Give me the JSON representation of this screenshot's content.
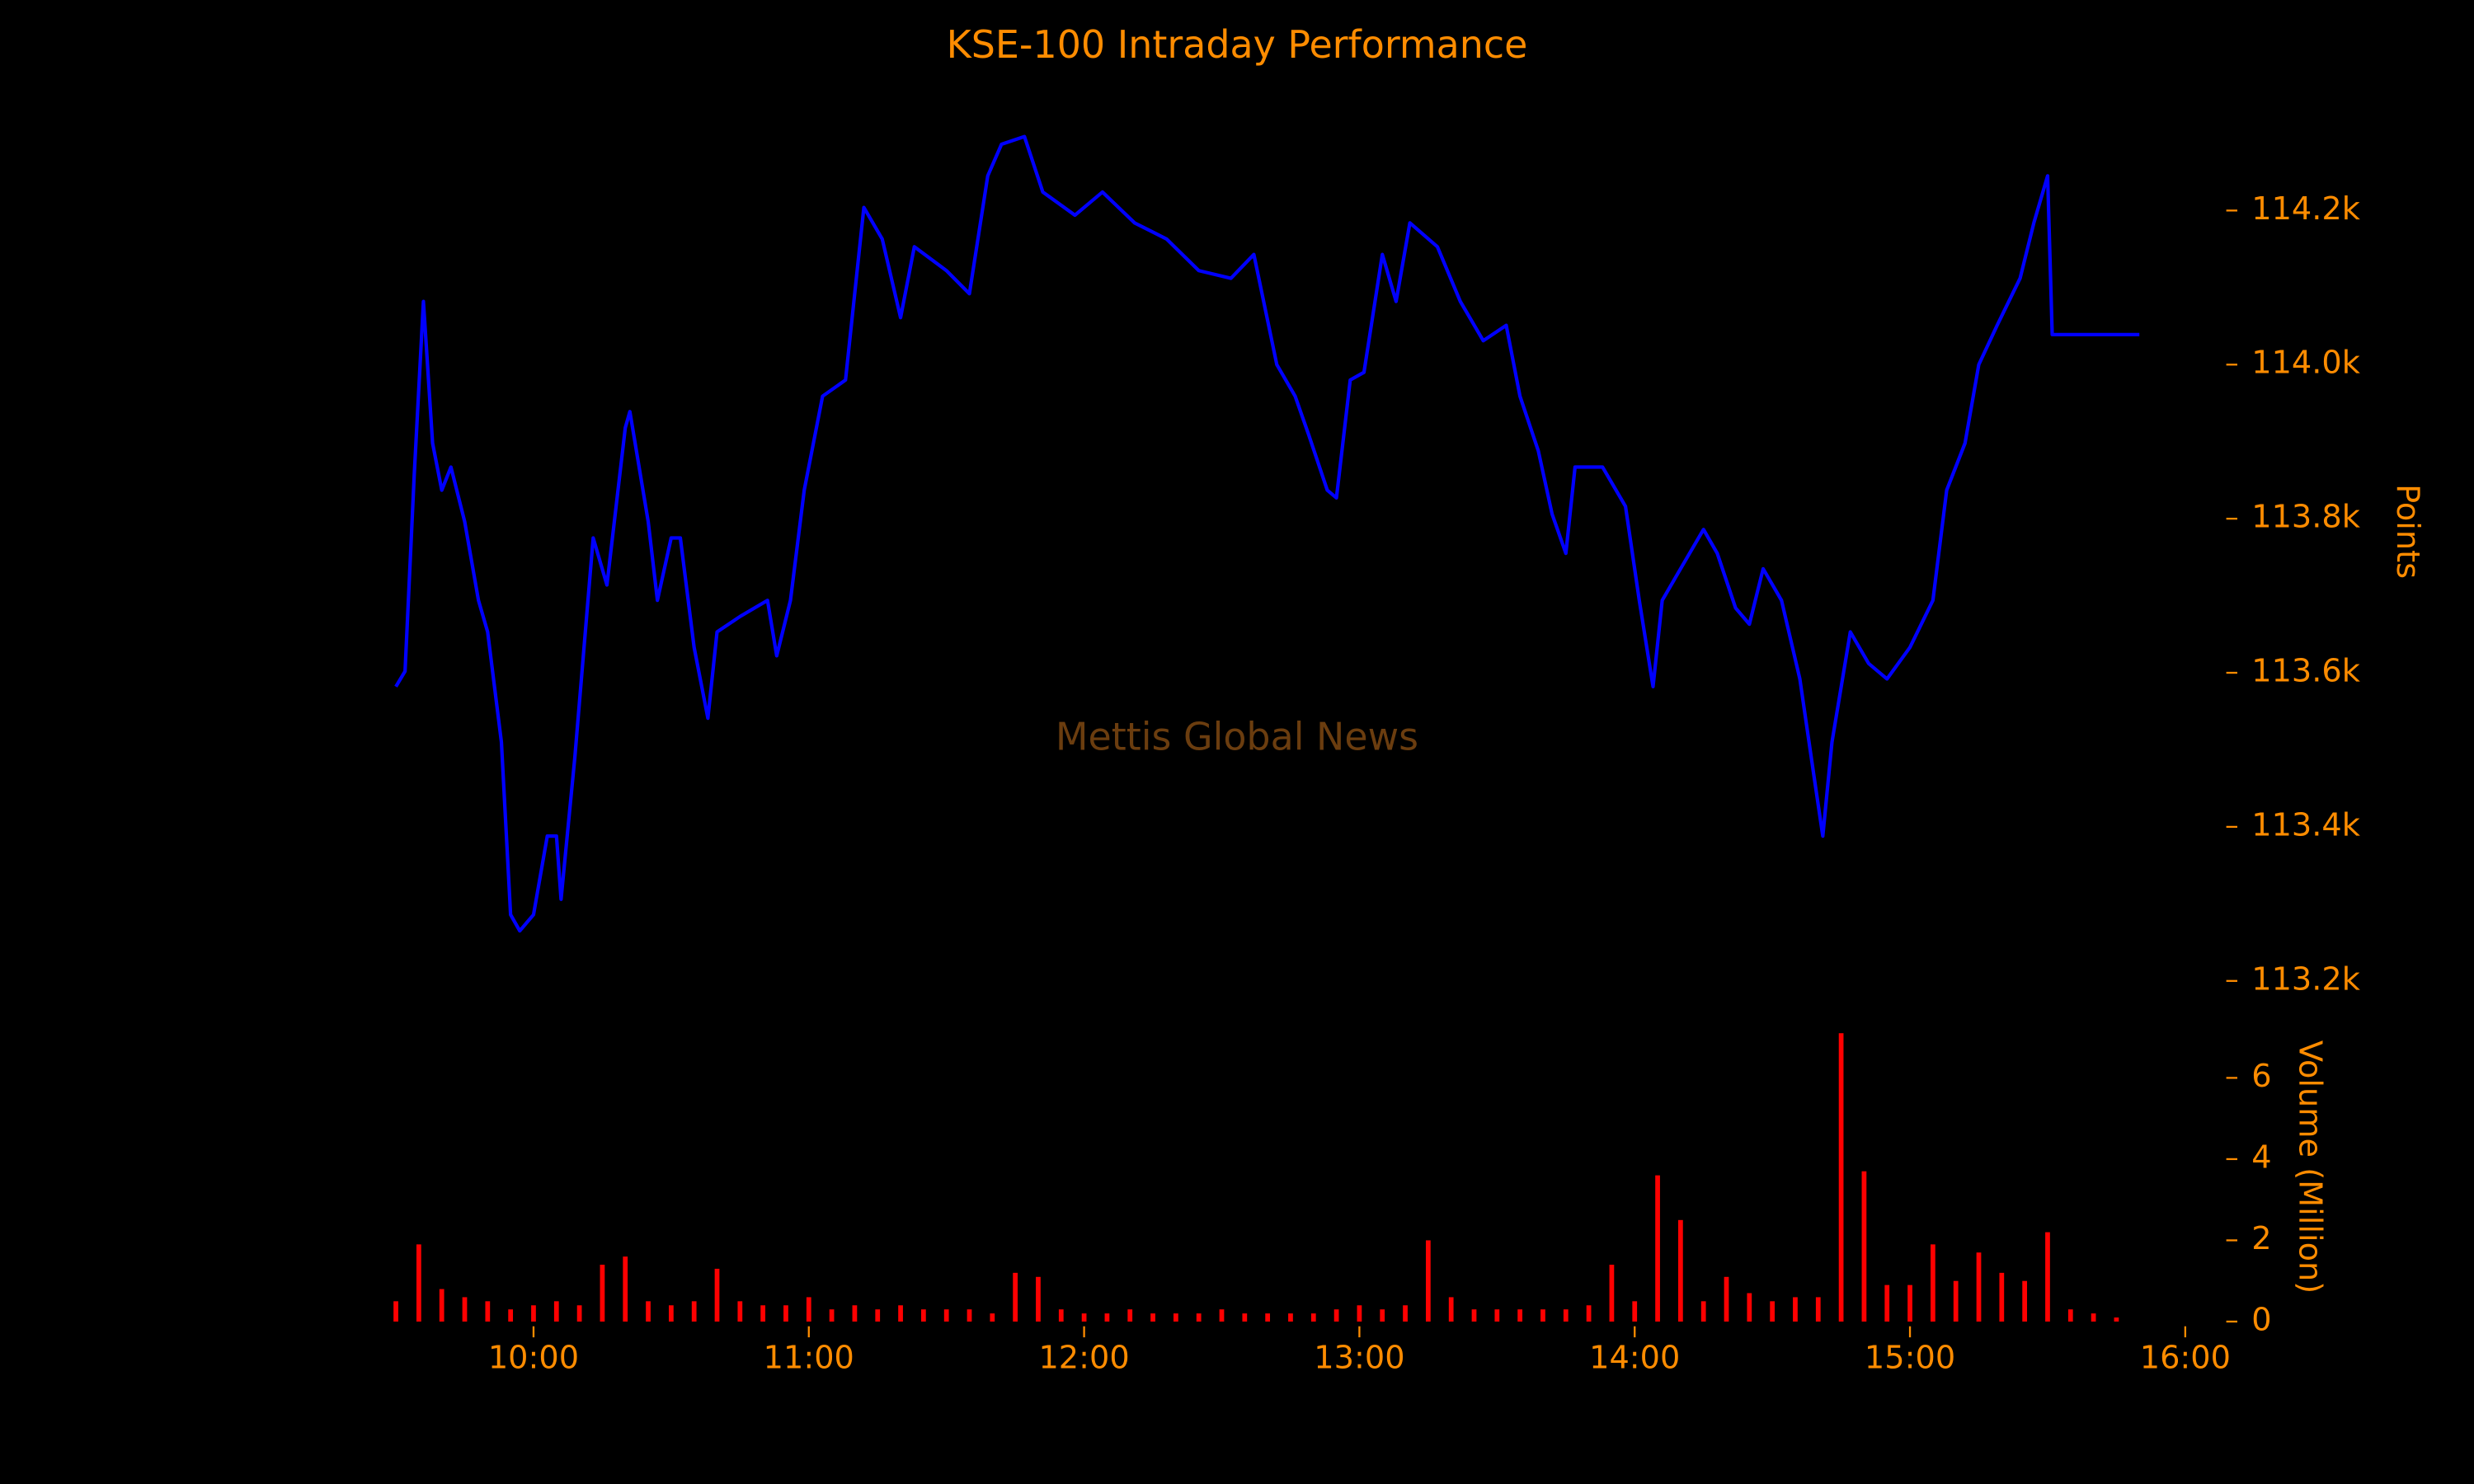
{
  "chart_data": [
    {
      "type": "line",
      "title": "KSE-100 Intraday Performance",
      "watermark": "Mettis Global News",
      "ylabel": "Points",
      "x": [
        "09:30",
        "09:32",
        "09:34",
        "09:36",
        "09:38",
        "09:40",
        "09:42",
        "09:45",
        "09:48",
        "09:50",
        "09:53",
        "09:55",
        "09:57",
        "10:00",
        "10:03",
        "10:05",
        "10:06",
        "10:09",
        "10:13",
        "10:16",
        "10:20",
        "10:21",
        "10:25",
        "10:27",
        "10:30",
        "10:32",
        "10:35",
        "10:38",
        "10:40",
        "10:45",
        "10:51",
        "10:53",
        "10:56",
        "10:59",
        "11:03",
        "11:08",
        "11:12",
        "11:16",
        "11:20",
        "11:23",
        "11:30",
        "11:35",
        "11:39",
        "11:42",
        "11:47",
        "11:51",
        "11:58",
        "12:04",
        "12:11",
        "12:18",
        "12:25",
        "12:32",
        "12:37",
        "12:42",
        "12:46",
        "12:49",
        "12:53",
        "12:55",
        "12:58",
        "13:01",
        "13:05",
        "13:08",
        "13:11",
        "13:17",
        "13:22",
        "13:27",
        "13:32",
        "13:35",
        "13:39",
        "13:42",
        "13:45",
        "13:47",
        "13:53",
        "13:58",
        "14:01",
        "14:04",
        "14:06",
        "14:10",
        "14:15",
        "14:18",
        "14:22",
        "14:25",
        "14:28",
        "14:32",
        "14:36",
        "14:39",
        "14:41",
        "14:43",
        "14:47",
        "14:51",
        "14:55",
        "15:00",
        "15:05",
        "15:08",
        "15:12",
        "15:15",
        "15:19",
        "15:24",
        "15:27",
        "15:30",
        "15:31",
        "15:50"
      ],
      "series": [
        {
          "name": "KSE-100",
          "color": "#0000ff",
          "values": [
            113582,
            113602,
            113857,
            114082,
            113898,
            113837,
            113867,
            113796,
            113694,
            113653,
            113510,
            113286,
            113265,
            113286,
            113388,
            113388,
            113306,
            113490,
            113775,
            113714,
            113918,
            113939,
            113796,
            113694,
            113775,
            113775,
            113633,
            113541,
            113653,
            113673,
            113694,
            113622,
            113694,
            113837,
            113959,
            113980,
            114204,
            114163,
            114061,
            114153,
            114122,
            114092,
            114245,
            114286,
            114296,
            114224,
            114194,
            114224,
            114184,
            114163,
            114122,
            114112,
            114143,
            114000,
            113959,
            113908,
            113837,
            113827,
            113980,
            113990,
            114143,
            114082,
            114184,
            114153,
            114082,
            114031,
            114051,
            113959,
            113888,
            113806,
            113755,
            113867,
            113867,
            113816,
            113694,
            113582,
            113694,
            113735,
            113786,
            113755,
            113684,
            113663,
            113735,
            113694,
            113592,
            113469,
            113388,
            113510,
            113653,
            113612,
            113592,
            113633,
            113694,
            113837,
            113898,
            114000,
            114051,
            114112,
            114184,
            114245,
            114039,
            114039
          ]
        }
      ],
      "xlim": [
        "09:29",
        "16:00"
      ],
      "ylim": [
        113200,
        114330
      ],
      "yticks": [
        {
          "value": 113200,
          "label": "113.2k"
        },
        {
          "value": 113400,
          "label": "113.4k"
        },
        {
          "value": 113600,
          "label": "113.6k"
        },
        {
          "value": 113800,
          "label": "113.8k"
        },
        {
          "value": 114000,
          "label": "114.0k"
        },
        {
          "value": 114200,
          "label": "114.2k"
        }
      ]
    },
    {
      "type": "bar",
      "ylabel": "Volume (Million)",
      "x": [
        "09:30",
        "09:35",
        "09:40",
        "09:45",
        "09:50",
        "09:55",
        "10:00",
        "10:05",
        "10:10",
        "10:15",
        "10:20",
        "10:25",
        "10:30",
        "10:35",
        "10:40",
        "10:45",
        "10:50",
        "10:55",
        "11:00",
        "11:05",
        "11:10",
        "11:15",
        "11:20",
        "11:25",
        "11:30",
        "11:35",
        "11:40",
        "11:45",
        "11:50",
        "11:55",
        "12:00",
        "12:05",
        "12:10",
        "12:15",
        "12:20",
        "12:25",
        "12:30",
        "12:35",
        "12:40",
        "12:45",
        "12:50",
        "12:55",
        "13:00",
        "13:05",
        "13:10",
        "13:15",
        "13:20",
        "13:25",
        "13:30",
        "13:35",
        "13:40",
        "13:45",
        "13:50",
        "13:55",
        "14:00",
        "14:05",
        "14:10",
        "14:15",
        "14:20",
        "14:25",
        "14:30",
        "14:35",
        "14:40",
        "14:45",
        "14:50",
        "14:55",
        "15:00",
        "15:05",
        "15:10",
        "15:15",
        "15:20",
        "15:25",
        "15:30",
        "15:35",
        "15:40",
        "15:45"
      ],
      "series": [
        {
          "name": "Volume",
          "color": "#ff0000",
          "values": [
            0.5,
            1.9,
            0.8,
            0.6,
            0.5,
            0.3,
            0.4,
            0.5,
            0.4,
            1.4,
            1.6,
            0.5,
            0.4,
            0.5,
            1.3,
            0.5,
            0.4,
            0.4,
            0.6,
            0.3,
            0.4,
            0.3,
            0.4,
            0.3,
            0.3,
            0.3,
            0.2,
            1.2,
            1.1,
            0.3,
            0.2,
            0.2,
            0.3,
            0.2,
            0.2,
            0.2,
            0.3,
            0.2,
            0.2,
            0.2,
            0.2,
            0.3,
            0.4,
            0.3,
            0.4,
            2.0,
            0.6,
            0.3,
            0.3,
            0.3,
            0.3,
            0.3,
            0.4,
            1.4,
            0.5,
            3.6,
            2.5,
            0.5,
            1.1,
            0.7,
            0.5,
            0.6,
            0.6,
            7.1,
            3.7,
            0.9,
            0.9,
            1.9,
            1.0,
            1.7,
            1.2,
            1.0,
            2.2,
            0.3,
            0.2,
            0.1
          ]
        }
      ],
      "xticks": [
        "10:00",
        "11:00",
        "12:00",
        "13:00",
        "14:00",
        "15:00",
        "16:00"
      ],
      "ylim": [
        0,
        7.3
      ],
      "yticks": [
        0,
        2,
        4,
        6
      ]
    }
  ]
}
